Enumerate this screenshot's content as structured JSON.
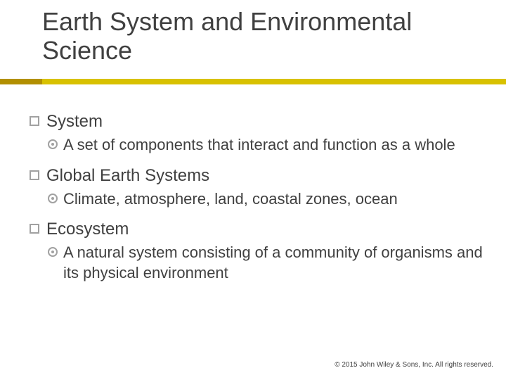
{
  "title": "Earth System and Environmental Science",
  "bar": {
    "accent_color": "#b28f00",
    "main_color": "#d8c100"
  },
  "text_color": "#404040",
  "items": [
    {
      "label": "System",
      "sub": "A set of components that interact and function as a whole"
    },
    {
      "label": "Global Earth Systems",
      "sub": "Climate, atmosphere, land, coastal zones, ocean"
    },
    {
      "label": "Ecosystem",
      "sub": "A natural system consisting of a community of organisms and its physical environment"
    }
  ],
  "copyright": "© 2015 John Wiley & Sons, Inc. All rights reserved.",
  "typography": {
    "title_fontsize": 36,
    "l1_fontsize": 24,
    "l2_fontsize": 22,
    "copyright_fontsize": 10,
    "font_family": "Arial"
  },
  "bullet_style": {
    "l1": "hollow-square",
    "l2": "hollow-circle-dot",
    "border_color": "#a1a1a1"
  }
}
